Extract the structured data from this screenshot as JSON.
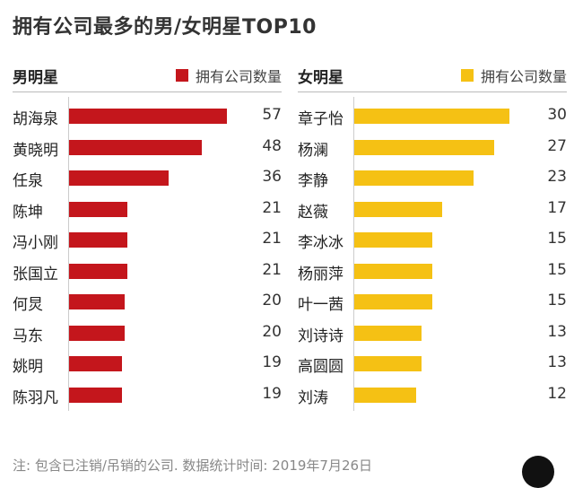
{
  "title": "拥有公司最多的男/女明星TOP10",
  "footnote": "注: 包含已注销/吊销的公司. 数据统计时间: 2019年7月26日",
  "chart_data": [
    {
      "type": "bar",
      "group_title": "男明星",
      "legend_label": "拥有公司数量",
      "color": "#c4161c",
      "categories": [
        "胡海泉",
        "黄晓明",
        "任泉",
        "陈坤",
        "冯小刚",
        "张国立",
        "何炅",
        "马东",
        "姚明",
        "陈羽凡"
      ],
      "values": [
        57,
        48,
        36,
        21,
        21,
        21,
        20,
        20,
        19,
        19
      ],
      "xlim": [
        0,
        60
      ]
    },
    {
      "type": "bar",
      "group_title": "女明星",
      "legend_label": "拥有公司数量",
      "color": "#f5c114",
      "categories": [
        "章子怡",
        "杨澜",
        "李静",
        "赵薇",
        "李冰冰",
        "杨丽萍",
        "叶一茜",
        "刘诗诗",
        "高圆圆",
        "刘涛"
      ],
      "values": [
        30,
        27,
        23,
        17,
        15,
        15,
        15,
        13,
        13,
        12
      ],
      "xlim": [
        0,
        32
      ]
    }
  ]
}
